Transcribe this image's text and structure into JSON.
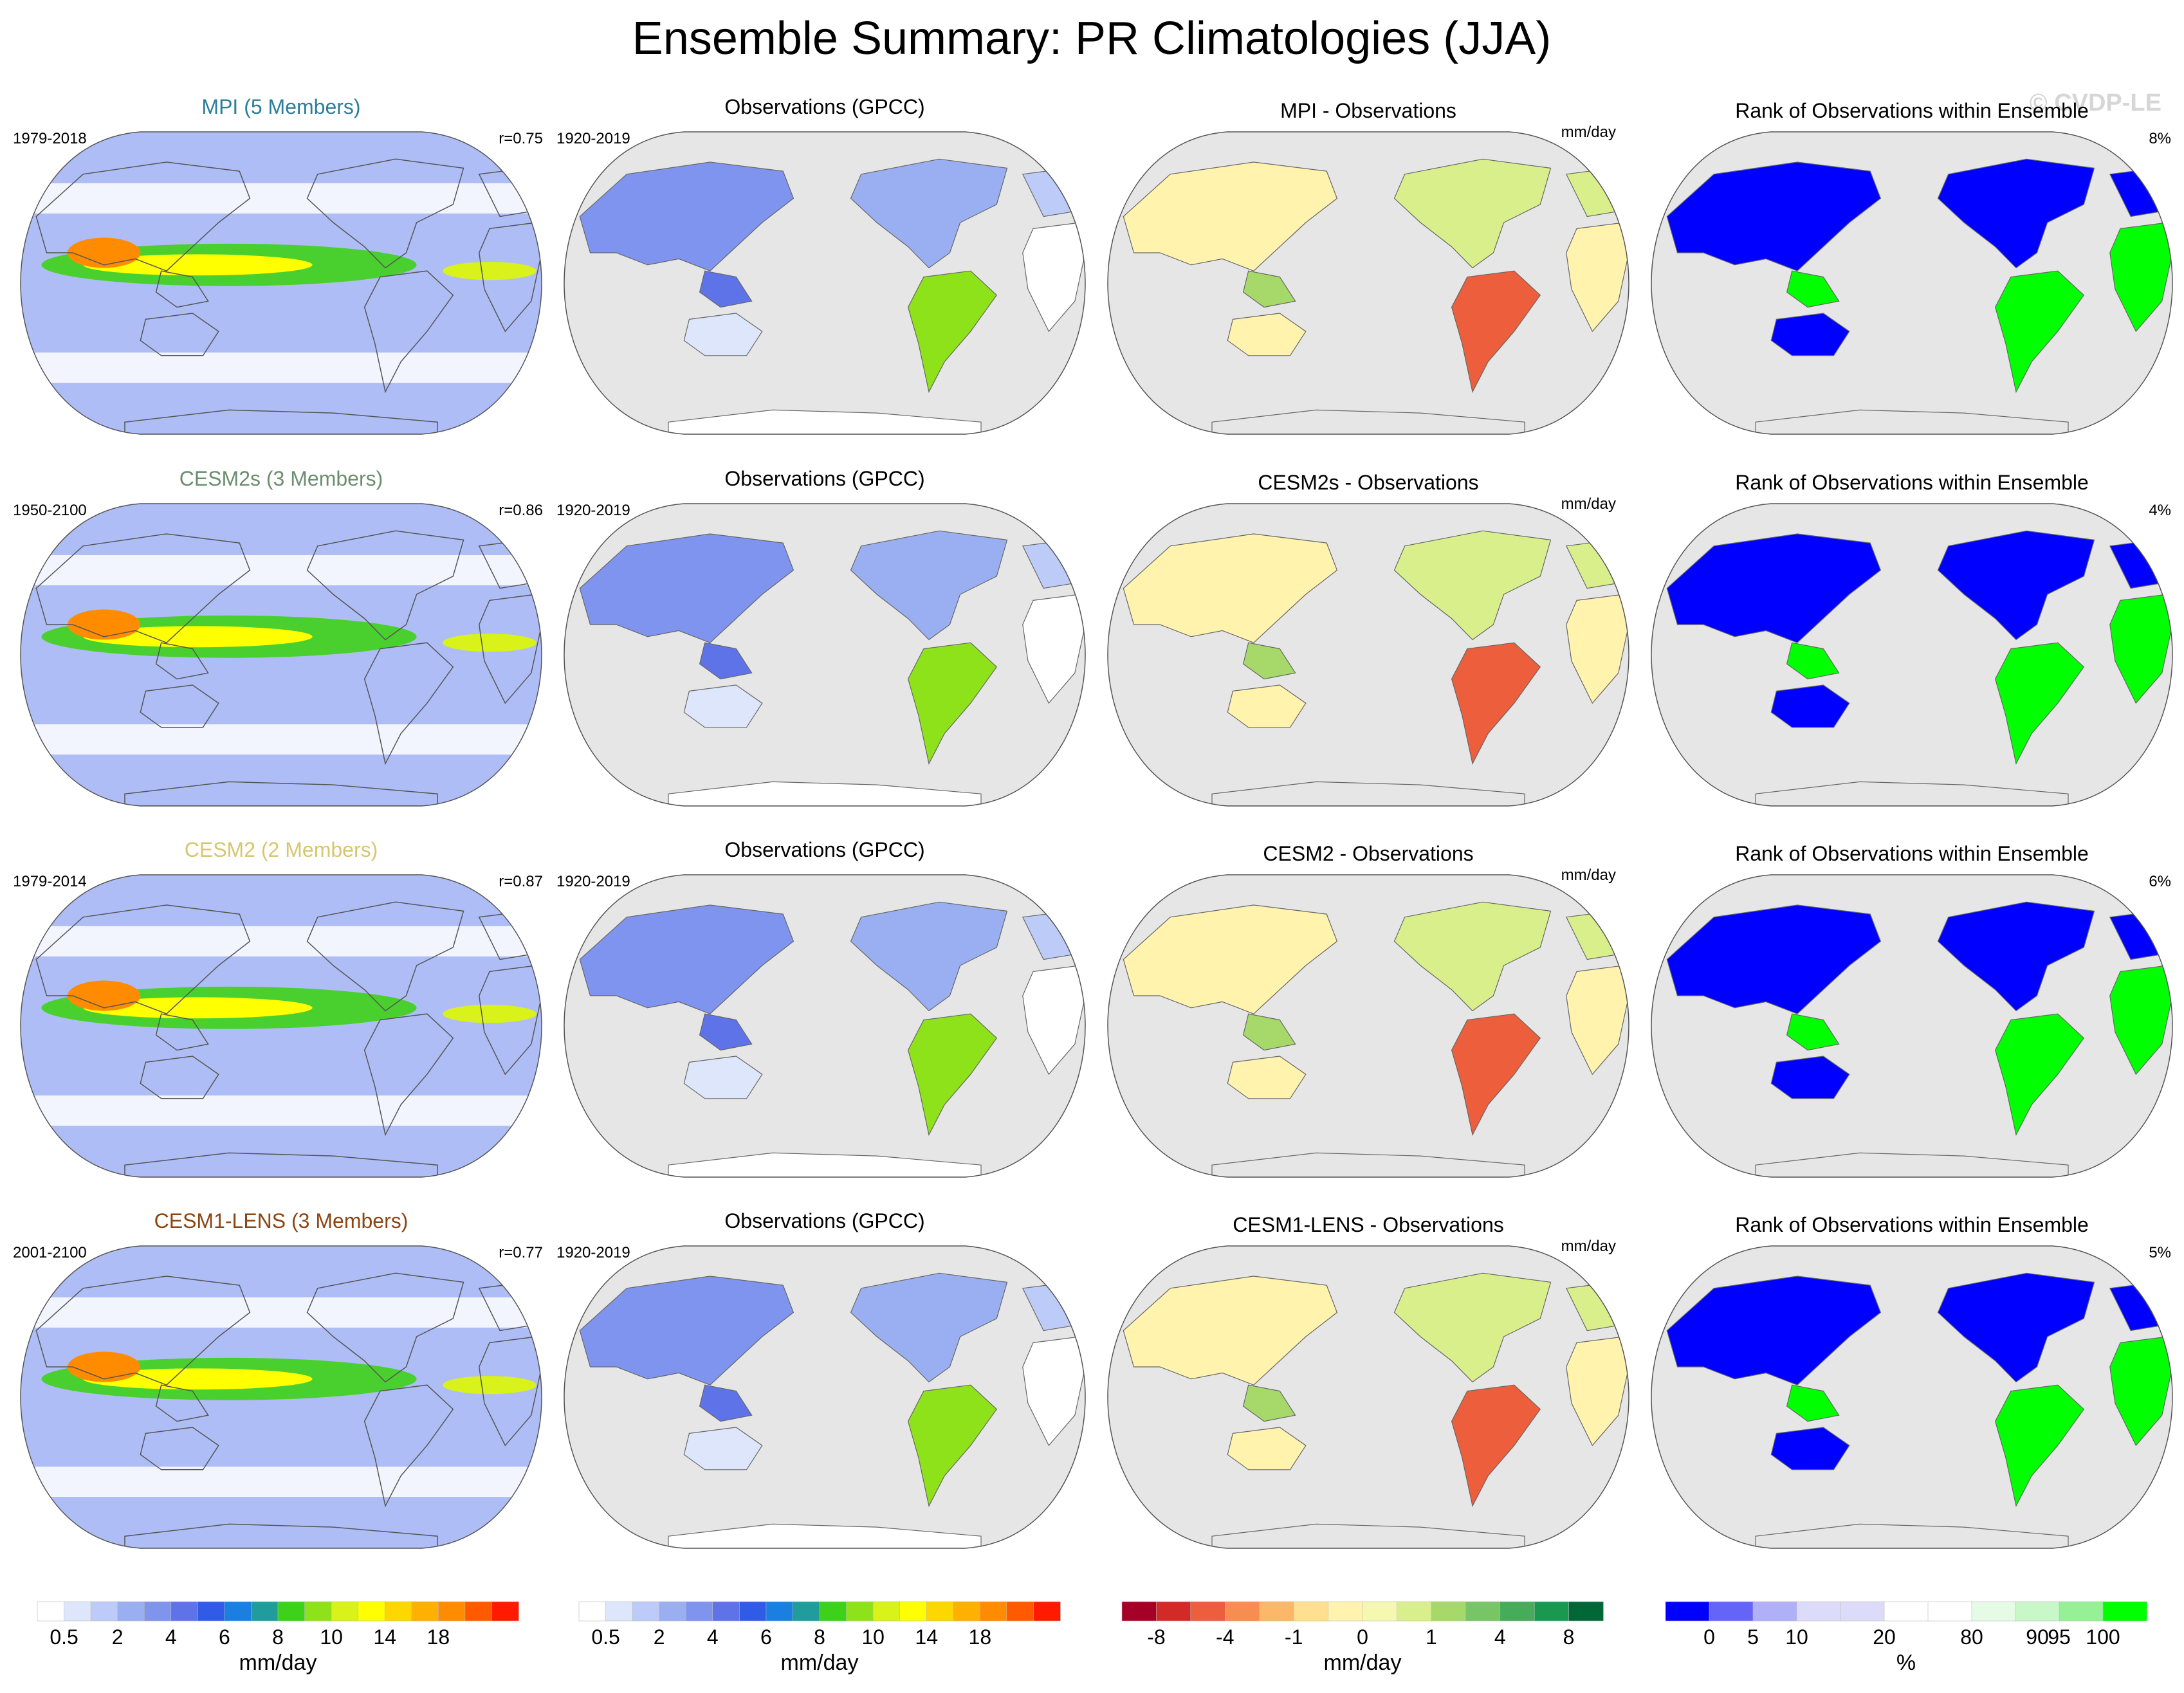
{
  "figure": {
    "title": "Ensemble Summary: PR Climatologies (JJA)",
    "watermark": "© CVDP-LE"
  },
  "chart_data": {
    "type": "heatmap",
    "projection": "robinson",
    "rows": [
      {
        "model": "MPI (5 Members)",
        "model_color": "#2a7e9a",
        "period": "1979-2018",
        "r": "r=0.75",
        "obs_title": "Observations (GPCC)",
        "obs_period": "1920-2019",
        "diff_title": "MPI - Observations",
        "diff_units": "mm/day",
        "rank_title": "Rank of Observations within Ensemble",
        "rank_pct": "8%"
      },
      {
        "model": "CESM2s (3 Members)",
        "model_color": "#6b8e6e",
        "period": "1950-2100",
        "r": "r=0.86",
        "obs_title": "Observations (GPCC)",
        "obs_period": "1920-2019",
        "diff_title": "CESM2s - Observations",
        "diff_units": "mm/day",
        "rank_title": "Rank of Observations within Ensemble",
        "rank_pct": "4%"
      },
      {
        "model": "CESM2 (2 Members)",
        "model_color": "#d7c66f",
        "period": "1979-2014",
        "r": "r=0.87",
        "obs_title": "Observations (GPCC)",
        "obs_period": "1920-2019",
        "diff_title": "CESM2 - Observations",
        "diff_units": "mm/day",
        "rank_title": "Rank of Observations within Ensemble",
        "rank_pct": "6%"
      },
      {
        "model": "CESM1-LENS (3 Members)",
        "model_color": "#8b4513",
        "period": "2001-2100",
        "r": "r=0.77",
        "obs_title": "Observations (GPCC)",
        "obs_period": "1920-2019",
        "diff_title": "CESM1-LENS - Observations",
        "diff_units": "mm/day",
        "rank_title": "Rank of Observations within Ensemble",
        "rank_pct": "5%"
      }
    ],
    "colorbars": [
      {
        "name": "pr",
        "units": "mm/day",
        "colors": [
          "#ffffff",
          "#dde6fb",
          "#bccbf7",
          "#9aaff2",
          "#7f94ee",
          "#5f73e8",
          "#2f5be6",
          "#1a7fe0",
          "#1f9c9b",
          "#3ed11a",
          "#8ee21a",
          "#d8f21a",
          "#ffff00",
          "#ffd700",
          "#ffb000",
          "#ff8c00",
          "#ff5a00",
          "#ff1a00"
        ],
        "labels": [
          {
            "text": "0.5",
            "at": 1
          },
          {
            "text": "2",
            "at": 3
          },
          {
            "text": "4",
            "at": 5
          },
          {
            "text": "6",
            "at": 7
          },
          {
            "text": "8",
            "at": 9
          },
          {
            "text": "10",
            "at": 11
          },
          {
            "text": "14",
            "at": 13
          },
          {
            "text": "18",
            "at": 15
          }
        ]
      },
      {
        "name": "obs",
        "units": "mm/day",
        "colors": [
          "#ffffff",
          "#dde6fb",
          "#bccbf7",
          "#9aaff2",
          "#7f94ee",
          "#5f73e8",
          "#2f5be6",
          "#1a7fe0",
          "#1f9c9b",
          "#3ed11a",
          "#8ee21a",
          "#d8f21a",
          "#ffff00",
          "#ffd700",
          "#ffb000",
          "#ff8c00",
          "#ff5a00",
          "#ff1a00"
        ],
        "labels": [
          {
            "text": "0.5",
            "at": 1
          },
          {
            "text": "2",
            "at": 3
          },
          {
            "text": "4",
            "at": 5
          },
          {
            "text": "6",
            "at": 7
          },
          {
            "text": "8",
            "at": 9
          },
          {
            "text": "10",
            "at": 11
          },
          {
            "text": "14",
            "at": 13
          },
          {
            "text": "18",
            "at": 15
          }
        ]
      },
      {
        "name": "diff",
        "units": "mm/day",
        "colors": [
          "#a50026",
          "#d22b27",
          "#ec5e3c",
          "#f88d52",
          "#fdb768",
          "#fee090",
          "#fff3ad",
          "#f5f8b0",
          "#d9ef8b",
          "#a6d96a",
          "#78c565",
          "#45ad5a",
          "#1a9850",
          "#006837"
        ],
        "labels": [
          {
            "text": "-8",
            "at": 1
          },
          {
            "text": "-4",
            "at": 3
          },
          {
            "text": "-1",
            "at": 5
          },
          {
            "text": "0",
            "at": 7
          },
          {
            "text": "1",
            "at": 9
          },
          {
            "text": "4",
            "at": 11
          },
          {
            "text": "8",
            "at": 13
          }
        ]
      },
      {
        "name": "rank",
        "units": "%",
        "colors": [
          "#0000ff",
          "#6464f8",
          "#b0b0f8",
          "#dcdcfa",
          "#dcdcfa",
          "#ffffff",
          "#ffffff",
          "#e6fbe6",
          "#c8f7c8",
          "#96f096",
          "#00ff00"
        ],
        "labels": [
          {
            "text": "0",
            "at": 1
          },
          {
            "text": "5",
            "at": 2
          },
          {
            "text": "10",
            "at": 3
          },
          {
            "text": "20",
            "at": 5
          },
          {
            "text": "80",
            "at": 7
          },
          {
            "text": "90",
            "at": 8.5
          },
          {
            "text": "95",
            "at": 9
          },
          {
            "text": "100",
            "at": 10
          }
        ]
      }
    ]
  }
}
